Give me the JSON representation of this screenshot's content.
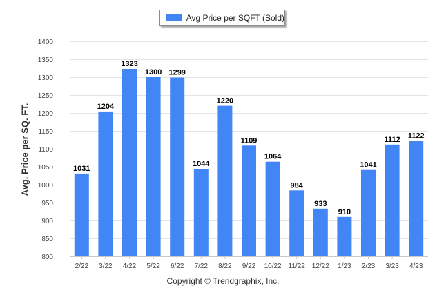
{
  "chart_data": {
    "type": "bar",
    "categories": [
      "2/22",
      "3/22",
      "4/22",
      "5/22",
      "6/22",
      "7/22",
      "8/22",
      "9/22",
      "10/22",
      "11/22",
      "12/22",
      "1/23",
      "2/23",
      "3/23",
      "4/23"
    ],
    "series": [
      {
        "name": "Avg Price per SQFT (Sold)",
        "values": [
          1031,
          1204,
          1323,
          1300,
          1299,
          1044,
          1220,
          1109,
          1064,
          984,
          933,
          910,
          1041,
          1112,
          1122
        ]
      }
    ],
    "data_labels": [
      "1031",
      "1204",
      "1323",
      "1300",
      "1299",
      "1044",
      "1220",
      "1109",
      "1064",
      "984",
      "933",
      "910",
      "1041",
      "1112",
      "1122"
    ],
    "ylabel": "Avg. Price per SQ. FT.",
    "ylim": [
      800,
      1400
    ],
    "yticks": [
      800,
      850,
      900,
      950,
      1000,
      1050,
      1100,
      1150,
      1200,
      1250,
      1300,
      1350,
      1400
    ],
    "grid": true,
    "legend_position": "top-center",
    "bar_color": "#4285f4"
  },
  "footer": {
    "copyright": "Copyright © Trendgraphix, Inc."
  }
}
